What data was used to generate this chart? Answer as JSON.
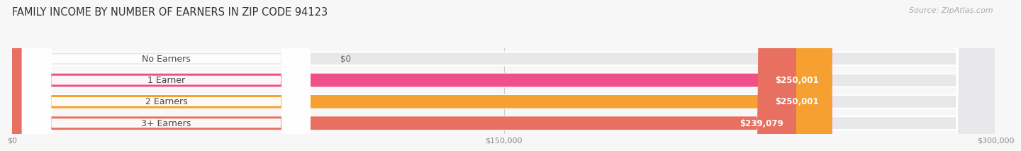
{
  "title": "FAMILY INCOME BY NUMBER OF EARNERS IN ZIP CODE 94123",
  "source": "Source: ZipAtlas.com",
  "categories": [
    "No Earners",
    "1 Earner",
    "2 Earners",
    "3+ Earners"
  ],
  "values": [
    0,
    250001,
    250001,
    239079
  ],
  "bar_colors": [
    "#aaaadd",
    "#f0508a",
    "#f5a030",
    "#e87060"
  ],
  "bar_bg_color": "#e8e8ea",
  "row_bg_color": "#f0f0f2",
  "label_colors": [
    "#888888",
    "#ffffff",
    "#ffffff",
    "#ffffff"
  ],
  "max_value": 300000,
  "xtick_values": [
    0,
    150000,
    300000
  ],
  "xtick_labels": [
    "$0",
    "$150,000",
    "$300,000"
  ],
  "value_labels": [
    "$0",
    "$250,001",
    "$250,001",
    "$239,079"
  ],
  "background_color": "#f7f7f7",
  "bar_height": 0.62,
  "title_fontsize": 10.5,
  "source_fontsize": 8,
  "label_fontsize": 9,
  "value_fontsize": 8.5
}
